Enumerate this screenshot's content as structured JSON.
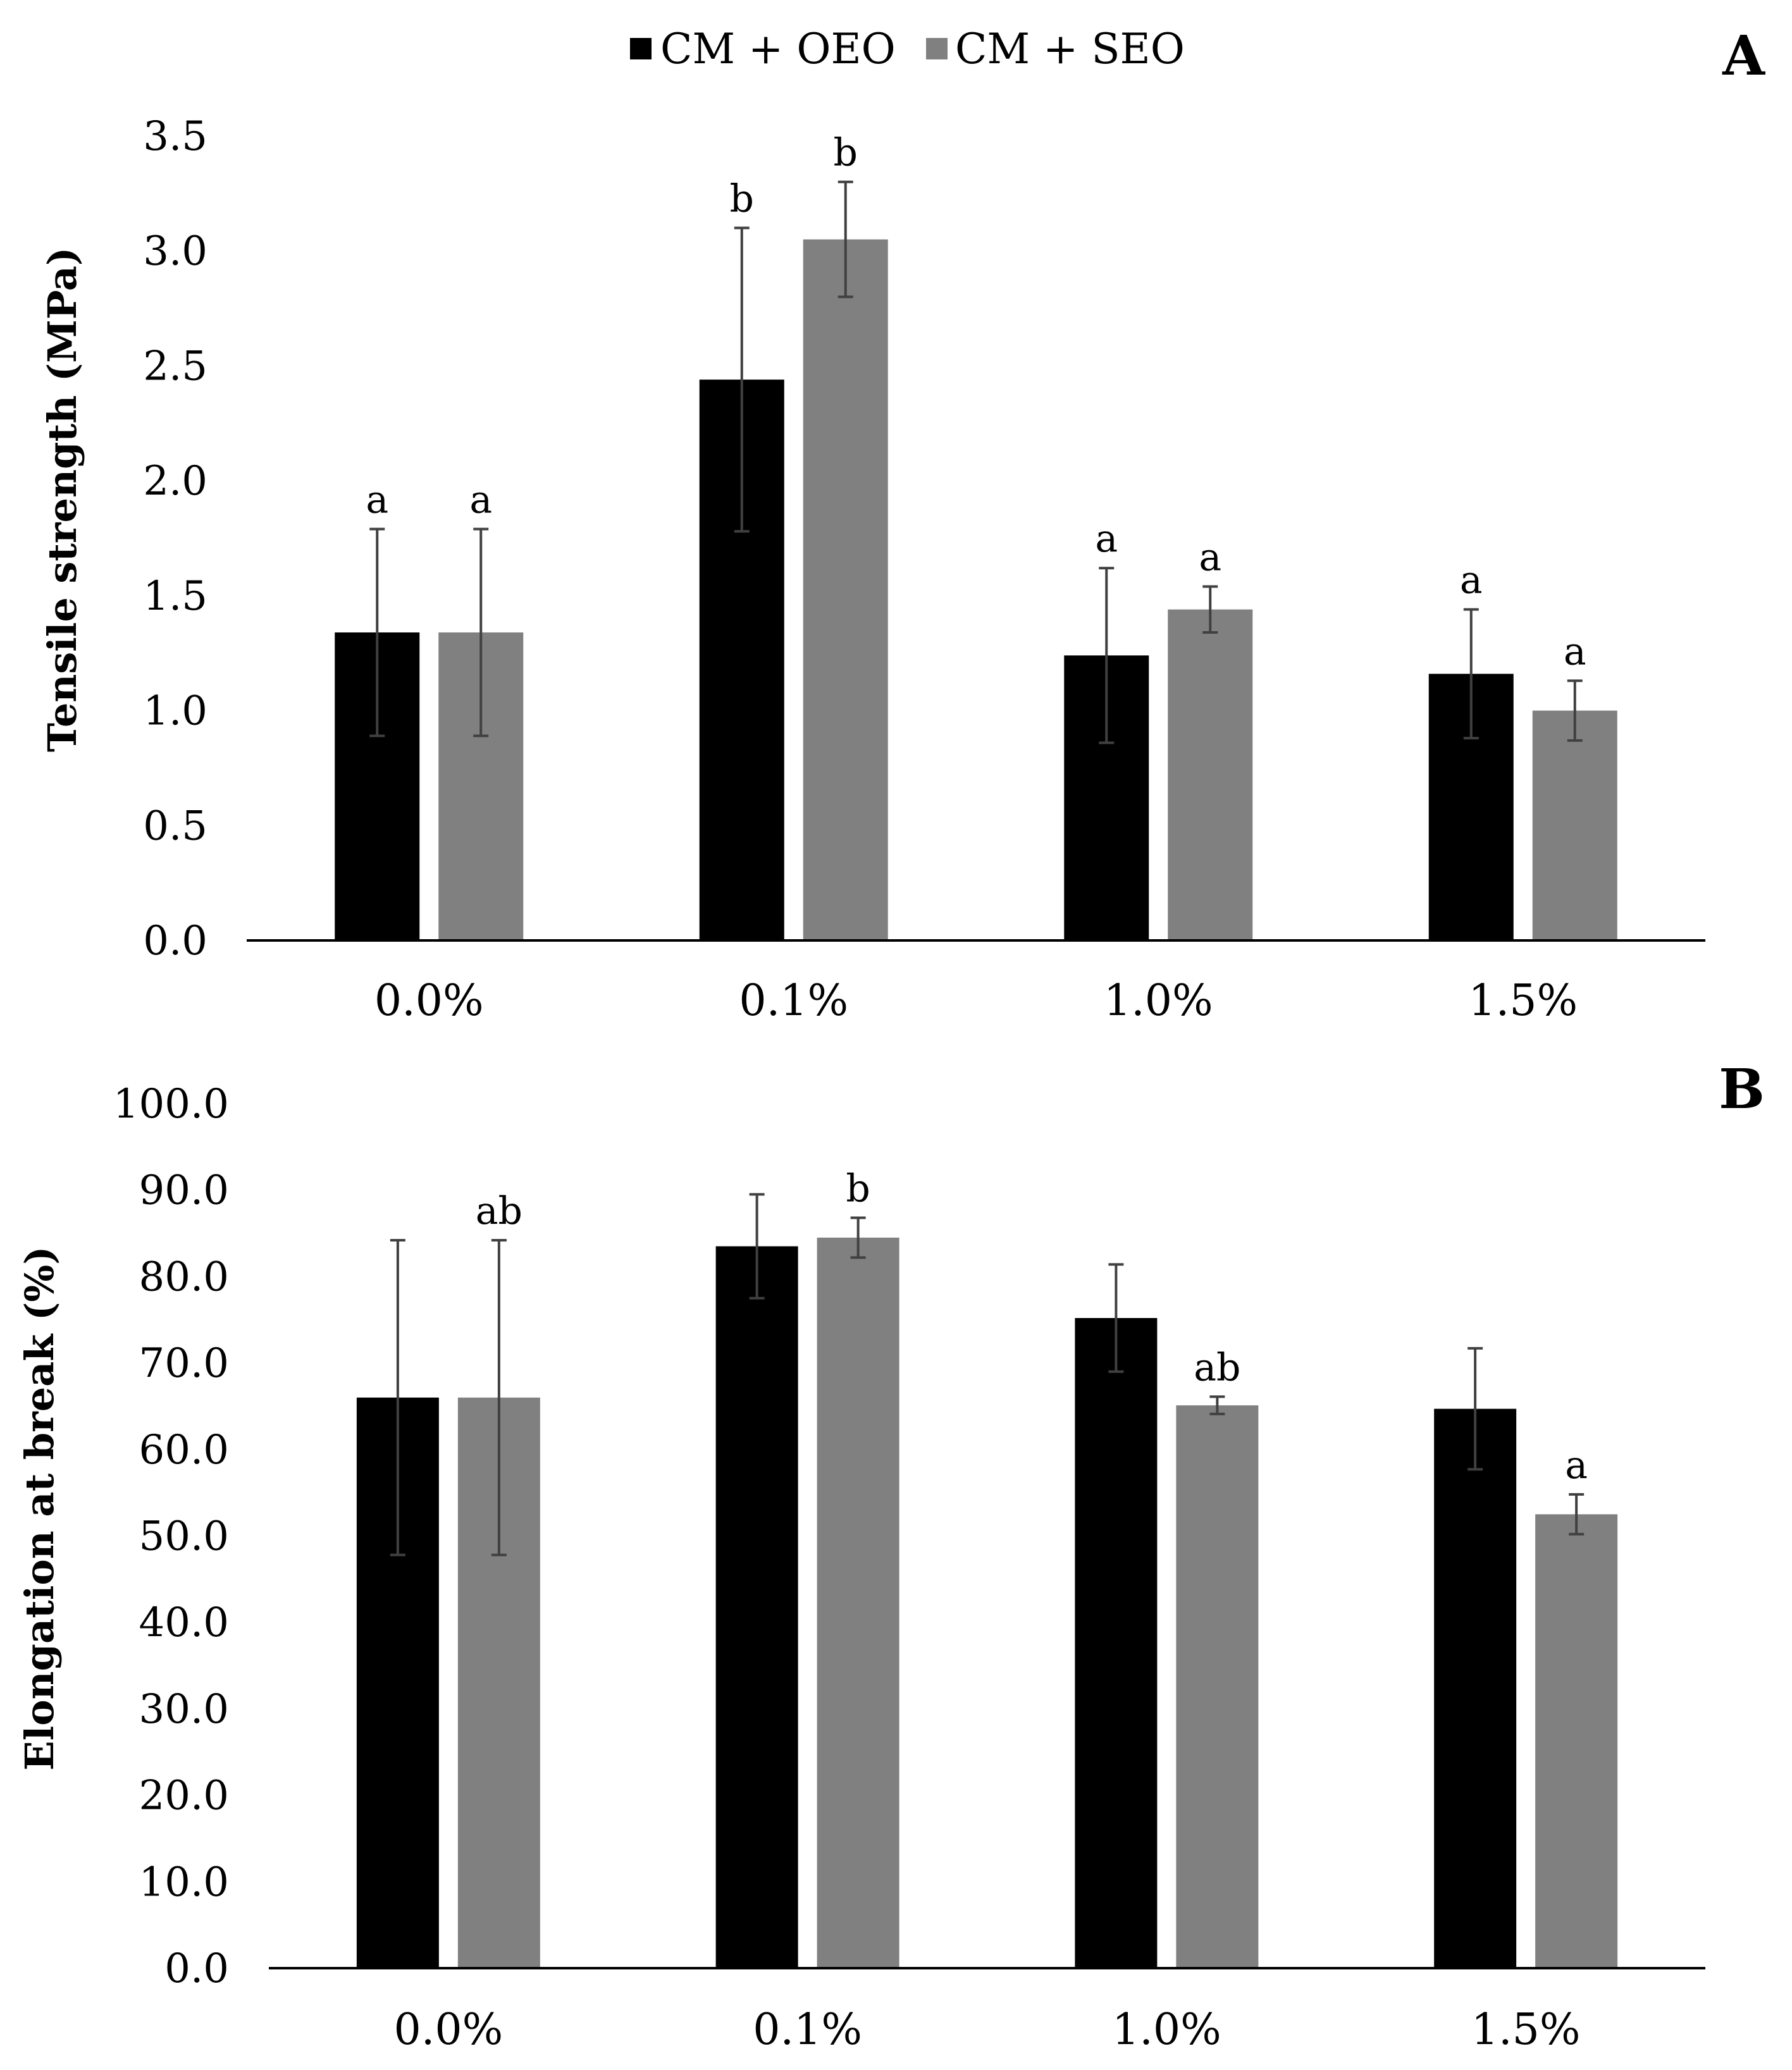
{
  "legend": {
    "items": [
      {
        "label": "CM + OEO",
        "color": "#000000"
      },
      {
        "label": "CM + SEO",
        "color": "#808080"
      }
    ]
  },
  "colors": {
    "series_oeo": "#000000",
    "series_seo": "#808080",
    "error_bar": "#404040",
    "axis": "#000000"
  },
  "chart_data": [
    {
      "type": "bar",
      "panel": "A",
      "title": "",
      "xlabel": "",
      "ylabel": "Tensile strength (MPa)",
      "categories": [
        "0.0%",
        "0.1%",
        "1.0%",
        "1.5%"
      ],
      "ylim": [
        0,
        3.5
      ],
      "yticks": [
        0,
        0.5,
        1.0,
        1.5,
        2.0,
        2.5,
        3.0,
        3.5
      ],
      "ytick_labels": [
        "0.0",
        "0.5",
        "1.0",
        "1.5",
        "2.0",
        "2.5",
        "3.0",
        "3.5"
      ],
      "grid": false,
      "series": [
        {
          "name": "CM + OEO",
          "values": [
            1.34,
            2.44,
            1.24,
            1.16
          ],
          "errors": [
            0.45,
            0.66,
            0.38,
            0.28
          ],
          "labels": [
            "a",
            "b",
            "a",
            "a"
          ]
        },
        {
          "name": "CM + SEO",
          "values": [
            1.34,
            3.05,
            1.44,
            1.0
          ],
          "errors": [
            0.45,
            0.25,
            0.1,
            0.13
          ],
          "labels": [
            "a",
            "b",
            "a",
            "a"
          ]
        }
      ]
    },
    {
      "type": "bar",
      "panel": "B",
      "title": "",
      "xlabel": "",
      "ylabel": "Elongation at break (%)",
      "categories": [
        "0.0%",
        "0.1%",
        "1.0%",
        "1.5%"
      ],
      "ylim": [
        0,
        100
      ],
      "yticks": [
        0,
        10,
        20,
        30,
        40,
        50,
        60,
        70,
        80,
        90,
        100
      ],
      "ytick_labels": [
        "0.0",
        "10.0",
        "20.0",
        "30.0",
        "40.0",
        "50.0",
        "60.0",
        "70.0",
        "80.0",
        "90.0",
        "100.0"
      ],
      "grid": false,
      "series": [
        {
          "name": "CM + OEO",
          "values": [
            66.0,
            83.5,
            75.2,
            64.7
          ],
          "errors": [
            18.2,
            6.0,
            6.2,
            7.0
          ],
          "labels": [
            "",
            "",
            "",
            ""
          ]
        },
        {
          "name": "CM + SEO",
          "values": [
            66.0,
            84.5,
            65.1,
            52.5
          ],
          "errors": [
            18.2,
            2.3,
            1.0,
            2.3
          ],
          "labels": [
            "ab",
            "b",
            "ab",
            "a"
          ]
        }
      ]
    }
  ]
}
